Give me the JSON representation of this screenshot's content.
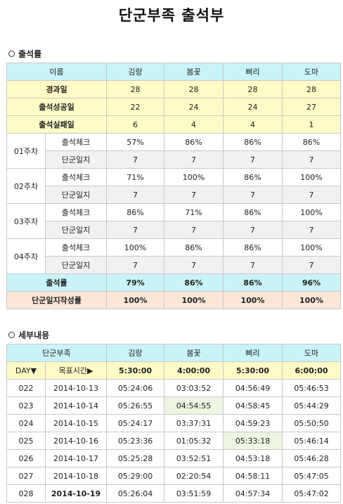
{
  "page_title": "단군부족 출석부",
  "section1_title": "출석률",
  "section2_title": "세부내용",
  "members": [
    "김랑",
    "봄꽃",
    "삐리",
    "도마"
  ],
  "attendance": {
    "header_label": "이름",
    "rows_yellow": [
      {
        "label": "경과일",
        "values": [
          "28",
          "28",
          "28",
          "28"
        ]
      },
      {
        "label": "출석성공일",
        "values": [
          "22",
          "24",
          "24",
          "27"
        ]
      },
      {
        "label": "출석실패일",
        "values": [
          "6",
          "4",
          "4",
          "1"
        ]
      }
    ],
    "check_label": "출석체크",
    "diary_label": "단군일지",
    "weeks": [
      {
        "label": "01주차",
        "check": [
          "57%",
          "86%",
          "86%",
          "86%"
        ],
        "diary": [
          "7",
          "7",
          "7",
          "7"
        ]
      },
      {
        "label": "02주차",
        "check": [
          "71%",
          "100%",
          "86%",
          "100%"
        ],
        "diary": [
          "7",
          "7",
          "7",
          "7"
        ]
      },
      {
        "label": "03주차",
        "check": [
          "86%",
          "71%",
          "86%",
          "100%"
        ],
        "diary": [
          "7",
          "7",
          "7",
          "7"
        ]
      },
      {
        "label": "04주차",
        "check": [
          "100%",
          "86%",
          "86%",
          "100%"
        ],
        "diary": [
          "7",
          "7",
          "7",
          "7"
        ]
      }
    ],
    "rate_label": "출석률",
    "rate_values": [
      "79%",
      "86%",
      "86%",
      "96%"
    ],
    "diary_rate_label": "단군일지작성률",
    "diary_rate_values": [
      "100%",
      "100%",
      "100%",
      "100%"
    ]
  },
  "detail": {
    "header_label": "단군부족",
    "day_label": "DAY▼",
    "target_label": "목표시간▶",
    "targets": [
      "5:30:00",
      "4:00:00",
      "5:30:00",
      "6:00:00"
    ],
    "rows": [
      {
        "day": "022",
        "date": "2014-10-13",
        "times": [
          "05:24:06",
          "03:03:52",
          "04:56:49",
          "05:46:53"
        ]
      },
      {
        "day": "023",
        "date": "2014-10-14",
        "times": [
          "05:26:55",
          "04:54:55",
          "04:58:45",
          "05:44:29"
        ]
      },
      {
        "day": "024",
        "date": "2014-10-15",
        "times": [
          "05:24:17",
          "03:37:31",
          "04:59:23",
          "05:50:50"
        ]
      },
      {
        "day": "025",
        "date": "2014-10-16",
        "times": [
          "05:23:36",
          "01:05:32",
          "05:33:18",
          "05:46:14"
        ]
      },
      {
        "day": "026",
        "date": "2014-10-17",
        "times": [
          "05:25:28",
          "03:52:51",
          "04:53:18",
          "05:46:28"
        ]
      },
      {
        "day": "027",
        "date": "2014-10-18",
        "times": [
          "05:29:00",
          "02:20:54",
          "04:58:11",
          "05:47:05"
        ]
      },
      {
        "day": "028",
        "date": "2014-10-19",
        "times": [
          "05:26:04",
          "03:51:59",
          "04:57:34",
          "05:47:02"
        ]
      }
    ]
  }
}
